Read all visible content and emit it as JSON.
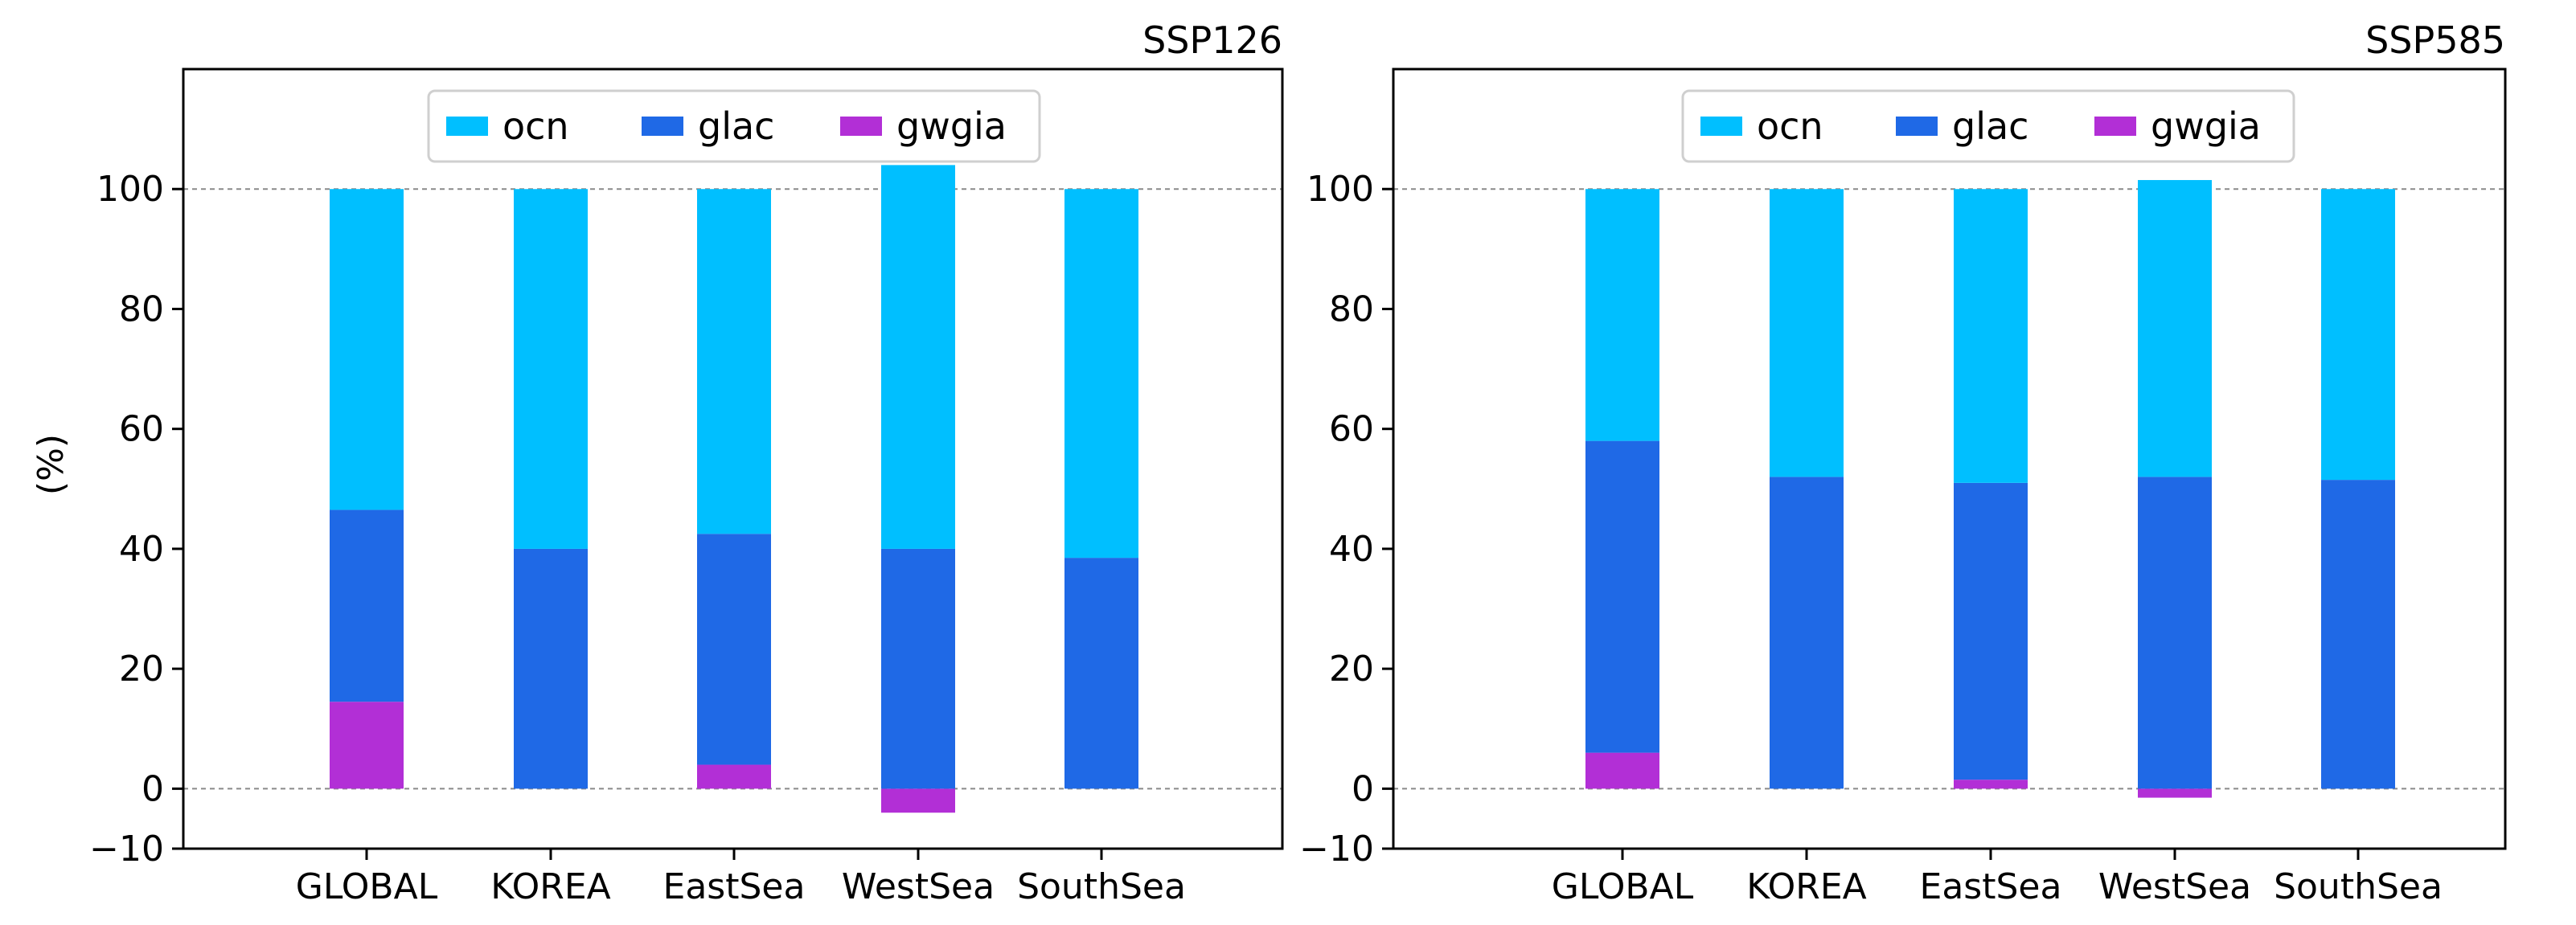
{
  "figure": {
    "ylabel": "(%)"
  },
  "chart_data": [
    {
      "type": "bar",
      "stacked": true,
      "title": "SSP126",
      "ylabel": "(%)",
      "ylim": [
        -10,
        120
      ],
      "yticks": [
        -10,
        0,
        20,
        40,
        60,
        80,
        100
      ],
      "reference_lines": [
        0,
        100
      ],
      "categories": [
        "GLOBAL",
        "KOREA",
        "EastSea",
        "WestSea",
        "SouthSea"
      ],
      "legend": {
        "placement": "upper-center",
        "entries": [
          "ocn",
          "glac",
          "gwgia"
        ]
      },
      "series": [
        {
          "name": "gwgia",
          "color": "#b22fd6",
          "values": [
            14.5,
            0,
            4,
            -4,
            0
          ]
        },
        {
          "name": "glac",
          "color": "#1f69e6",
          "values": [
            32,
            40,
            38.5,
            40,
            38.5
          ]
        },
        {
          "name": "ocn",
          "color": "#00bfff",
          "values": [
            53.5,
            60,
            57.5,
            64,
            61.5
          ]
        }
      ]
    },
    {
      "type": "bar",
      "stacked": true,
      "title": "SSP585",
      "ylabel": "",
      "ylim": [
        -10,
        120
      ],
      "yticks": [
        -10,
        0,
        20,
        40,
        60,
        80,
        100
      ],
      "reference_lines": [
        0,
        100
      ],
      "categories": [
        "GLOBAL",
        "KOREA",
        "EastSea",
        "WestSea",
        "SouthSea"
      ],
      "legend": {
        "placement": "upper-center",
        "entries": [
          "ocn",
          "glac",
          "gwgia"
        ]
      },
      "series": [
        {
          "name": "gwgia",
          "color": "#b22fd6",
          "values": [
            6,
            0,
            1.5,
            -1.5,
            0
          ]
        },
        {
          "name": "glac",
          "color": "#1f69e6",
          "values": [
            52,
            52,
            49.5,
            52,
            51.5
          ]
        },
        {
          "name": "ocn",
          "color": "#00bfff",
          "values": [
            42,
            48,
            49,
            49.5,
            48.5
          ]
        }
      ]
    }
  ]
}
